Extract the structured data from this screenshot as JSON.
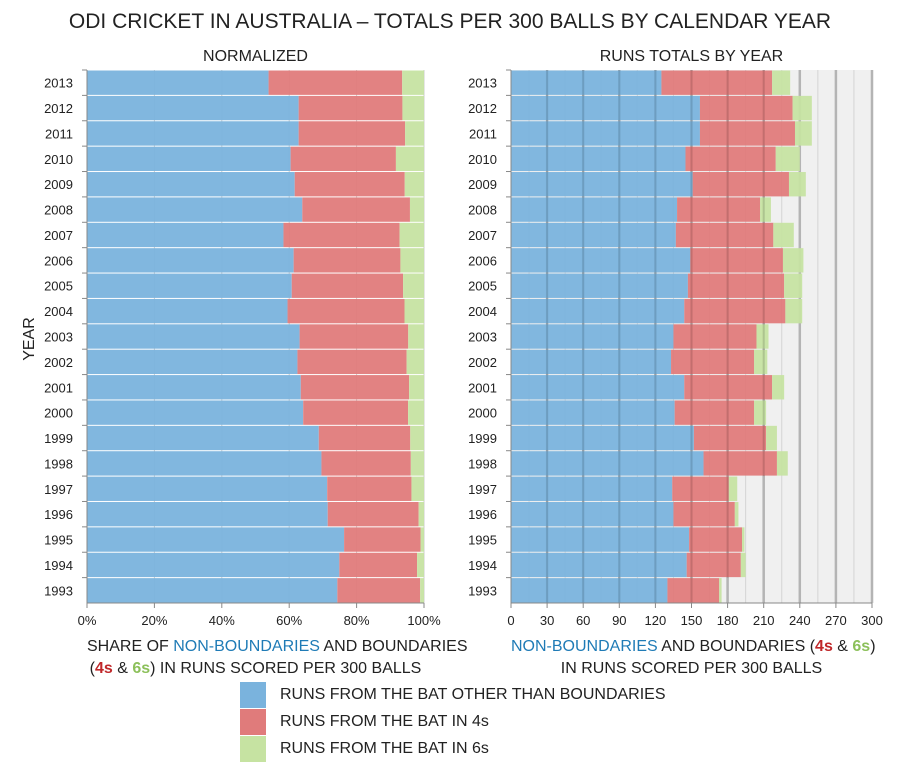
{
  "title": "ODI CRICKET IN AUSTRALIA – TOTALS PER 300 BALLS BY CALENDAR YEAR",
  "colors": {
    "non_boundaries": "#7ab3dd",
    "fours": "#e07b7b",
    "sixes": "#c6e3a2",
    "accent_blue": "#1f7bb6",
    "accent_red": "#c0282a",
    "accent_green": "#8cc05a"
  },
  "legend": [
    "RUNS FROM THE BAT OTHER THAN BOUNDARIES",
    "RUNS FROM THE BAT IN 4s",
    "RUNS FROM THE BAT IN 6s"
  ],
  "left_xlabel": {
    "p1": "SHARE OF ",
    "p2": "NON-BOUNDARIES",
    "p3": " AND BOUNDARIES",
    "p4": "(",
    "p5": "4s",
    "p6": " & ",
    "p7": "6s",
    "p8": ") IN RUNS SCORED PER 300 BALLS"
  },
  "right_xlabel": {
    "p1": "NON-BOUNDARIES",
    "p2": " AND BOUNDARIES (",
    "p3": "4s",
    "p4": " & ",
    "p5": "6s",
    "p6": ")",
    "p7": "IN RUNS SCORED PER 300 BALLS"
  },
  "chart_data": [
    {
      "type": "bar",
      "stacked": true,
      "orientation": "horizontal",
      "title": "NORMALIZED",
      "ylabel": "YEAR",
      "xlim": [
        0,
        100
      ],
      "xticks": [
        "0%",
        "20%",
        "40%",
        "60%",
        "80%",
        "100%"
      ],
      "normalized": true
    },
    {
      "type": "bar",
      "stacked": true,
      "orientation": "horizontal",
      "title": "RUNS TOTALS BY YEAR",
      "xlim": [
        0,
        300
      ],
      "xticks": [
        "0",
        "30",
        "60",
        "90",
        "120",
        "150",
        "180",
        "210",
        "240",
        "270",
        "300"
      ],
      "grid": true
    }
  ],
  "categories": [
    "2013",
    "2012",
    "2011",
    "2010",
    "2009",
    "2008",
    "2007",
    "2006",
    "2005",
    "2004",
    "2003",
    "2002",
    "2001",
    "2000",
    "1999",
    "1998",
    "1997",
    "1996",
    "1995",
    "1994",
    "1993"
  ],
  "series": [
    {
      "name": "RUNS FROM THE BAT OTHER THAN BOUNDARIES",
      "values": [
        125,
        157,
        157,
        145,
        151,
        138,
        137,
        149,
        147,
        144,
        135,
        133,
        144,
        136,
        152,
        160,
        134,
        135,
        148,
        146,
        130
      ]
    },
    {
      "name": "RUNS FROM THE BAT IN 4s",
      "values": [
        92,
        77,
        79,
        75,
        80,
        69,
        81,
        77,
        80,
        84,
        69,
        69,
        73,
        66,
        60,
        61,
        47,
        51,
        44,
        45,
        43
      ]
    },
    {
      "name": "RUNS FROM THE BAT IN 6s",
      "values": [
        15,
        16,
        14,
        20,
        14,
        9,
        17,
        17,
        15,
        14,
        10,
        11,
        10,
        10,
        9,
        9,
        7,
        3,
        2,
        4,
        2
      ]
    }
  ]
}
